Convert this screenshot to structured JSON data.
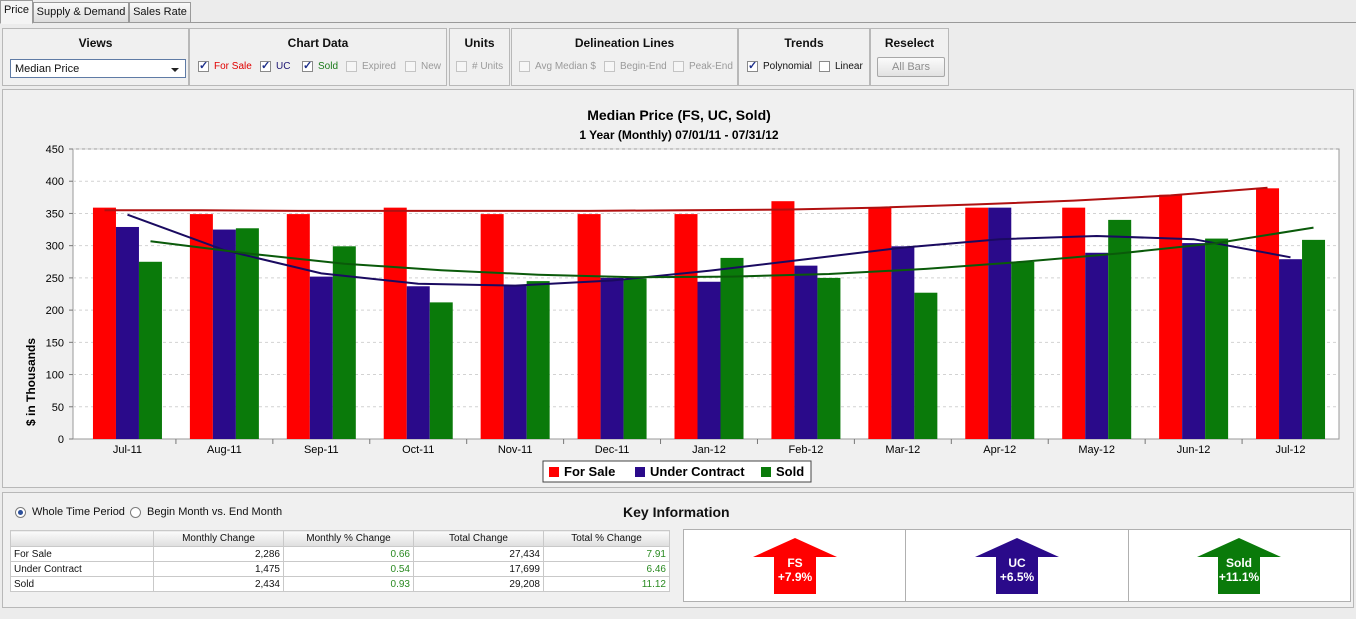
{
  "tabs": [
    "Price",
    "Supply & Demand",
    "Sales Rate"
  ],
  "views": {
    "title": "Views",
    "selected": "Median Price"
  },
  "chart_data_panel": {
    "title": "Chart Data",
    "items": [
      {
        "label": "For Sale",
        "checked": true,
        "color": "#e00000"
      },
      {
        "label": "UC",
        "checked": true,
        "color": "#1b1472"
      },
      {
        "label": "Sold",
        "checked": true,
        "color": "#1a7a1a"
      },
      {
        "label": "Expired",
        "checked": false
      },
      {
        "label": "New",
        "checked": false
      }
    ]
  },
  "units": {
    "title": "Units",
    "items": [
      {
        "label": "# Units",
        "checked": false
      }
    ]
  },
  "delineation": {
    "title": "Delineation Lines",
    "items": [
      {
        "label": "Avg Median $",
        "checked": false
      },
      {
        "label": "Begin-End",
        "checked": false
      },
      {
        "label": "Peak-End",
        "checked": false
      }
    ]
  },
  "trends": {
    "title": "Trends",
    "items": [
      {
        "label": "Polynomial",
        "checked": true
      },
      {
        "label": "Linear",
        "checked": false
      }
    ]
  },
  "reselect": {
    "title": "Reselect",
    "button": "All Bars"
  },
  "colors": {
    "for_sale": "#ff0000",
    "under_contract": "#2a0a8a",
    "sold": "#0a7a0a"
  },
  "chart_data": {
    "type": "bar",
    "title": "Median Price (FS, UC, Sold)",
    "subtitle": "1 Year (Monthly) 07/01/11 - 07/31/12",
    "ylabel": "$ in Thousands",
    "xlabel": "",
    "ylim": [
      0,
      450
    ],
    "yticks": [
      0,
      50,
      100,
      150,
      200,
      250,
      300,
      350,
      400,
      450
    ],
    "grid": true,
    "legend_position": "bottom",
    "categories": [
      "Jul-11",
      "Aug-11",
      "Sep-11",
      "Oct-11",
      "Nov-11",
      "Dec-11",
      "Jan-12",
      "Feb-12",
      "Mar-12",
      "Apr-12",
      "May-12",
      "Jun-12",
      "Jul-12"
    ],
    "series": [
      {
        "name": "For Sale",
        "color": "#ff0000",
        "values": [
          359,
          349,
          349,
          359,
          349,
          349,
          349,
          369,
          359,
          359,
          359,
          379,
          389
        ],
        "trend": [
          355,
          355,
          354,
          354,
          354,
          354,
          355,
          356,
          359,
          364,
          370,
          378,
          390
        ]
      },
      {
        "name": "Under Contract",
        "color": "#2a0a8a",
        "values": [
          329,
          325,
          252,
          237,
          239,
          250,
          244,
          269,
          299,
          359,
          289,
          304,
          279
        ],
        "trend": [
          348,
          293,
          257,
          241,
          238,
          246,
          261,
          279,
          297,
          310,
          315,
          310,
          282
        ]
      },
      {
        "name": "Sold",
        "color": "#0a7a0a",
        "values": [
          275,
          327,
          299,
          212,
          245,
          249,
          281,
          250,
          227,
          275,
          340,
          311,
          309
        ],
        "trend": [
          307,
          288,
          272,
          262,
          255,
          251,
          252,
          256,
          264,
          275,
          288,
          304,
          328
        ]
      }
    ]
  },
  "bottom": {
    "radio_whole": "Whole Time Period",
    "radio_begin": "Begin Month vs. End Month",
    "key_title": "Key Information",
    "columns": [
      "",
      "Monthly Change",
      "Monthly % Change",
      "Total Change",
      "Total % Change"
    ],
    "rows": [
      {
        "label": "For Sale",
        "monthly": "2,286",
        "monthly_pct": "0.66",
        "total": "27,434",
        "total_pct": "7.91"
      },
      {
        "label": "Under Contract",
        "monthly": "1,475",
        "monthly_pct": "0.54",
        "total": "17,699",
        "total_pct": "6.46"
      },
      {
        "label": "Sold",
        "monthly": "2,434",
        "monthly_pct": "0.93",
        "total": "29,208",
        "total_pct": "11.12"
      }
    ],
    "arrows": [
      {
        "name": "FS",
        "value": "+7.9%",
        "color": "#ff0000"
      },
      {
        "name": "UC",
        "value": "+6.5%",
        "color": "#2a0a8a"
      },
      {
        "name": "Sold",
        "value": "+11.1%",
        "color": "#0a7a0a"
      }
    ]
  }
}
